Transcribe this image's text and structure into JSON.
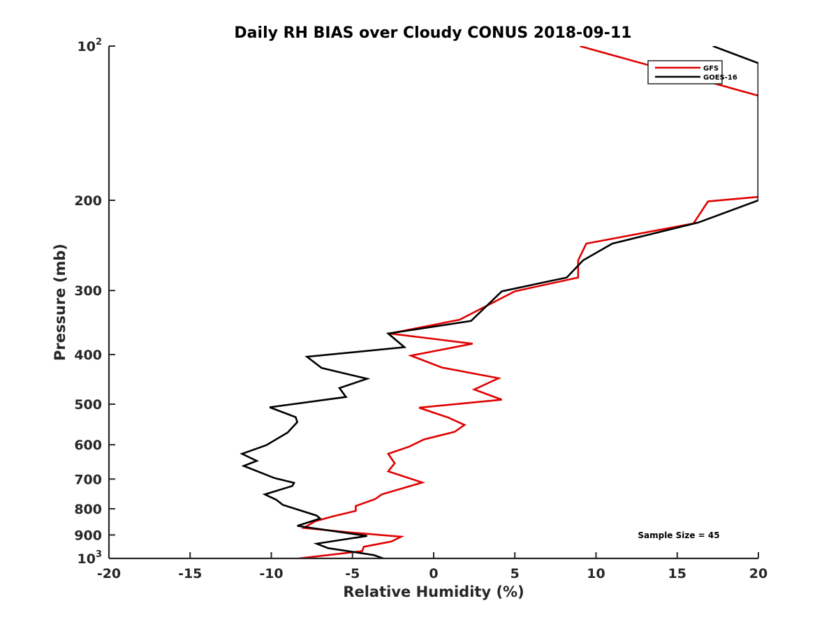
{
  "chart_data": {
    "type": "line",
    "title": "Daily RH BIAS over Cloudy CONUS 2018-09-11",
    "xlabel": "Relative Humidity (%)",
    "ylabel": "Pressure (mb)",
    "xlim": [
      -20,
      20
    ],
    "ylim": [
      100,
      1000
    ],
    "yscale": "log",
    "y_reversed": true,
    "grid": false,
    "legend_position": "top-right",
    "xticks": [
      -20,
      -15,
      -10,
      -5,
      0,
      5,
      10,
      15,
      20
    ],
    "xtick_labels": [
      "-20",
      "-15",
      "-10",
      "-5",
      "0",
      "5",
      "10",
      "15",
      "20"
    ],
    "yticks": [
      100,
      200,
      300,
      400,
      500,
      600,
      700,
      800,
      900,
      1000
    ],
    "ytick_labels": [
      {
        "base": "10",
        "exp": "2"
      },
      {
        "base": "200",
        "exp": ""
      },
      {
        "base": "300",
        "exp": ""
      },
      {
        "base": "400",
        "exp": ""
      },
      {
        "base": "500",
        "exp": ""
      },
      {
        "base": "600",
        "exp": ""
      },
      {
        "base": "700",
        "exp": ""
      },
      {
        "base": "800",
        "exp": ""
      },
      {
        "base": "900",
        "exp": ""
      },
      {
        "base": "10",
        "exp": "3"
      }
    ],
    "annotation": "Sample Size = 45",
    "series": [
      {
        "name": "GFS",
        "color": "#e00000",
        "points": [
          [
            9.0,
            100
          ],
          [
            20.0,
            125
          ],
          [
            20.0,
            197
          ],
          [
            16.9,
            201
          ],
          [
            16.0,
            222
          ],
          [
            9.4,
            243
          ],
          [
            8.9,
            262
          ],
          [
            8.9,
            283
          ],
          [
            5.0,
            301
          ],
          [
            1.6,
            342
          ],
          [
            -2.7,
            364
          ],
          [
            2.4,
            381
          ],
          [
            -1.4,
            402
          ],
          [
            0.5,
            424
          ],
          [
            4.0,
            445
          ],
          [
            2.5,
            468
          ],
          [
            4.2,
            490
          ],
          [
            -0.9,
            508
          ],
          [
            0.9,
            531
          ],
          [
            1.9,
            549
          ],
          [
            1.3,
            566
          ],
          [
            -0.6,
            586
          ],
          [
            -1.5,
            605
          ],
          [
            -2.8,
            625
          ],
          [
            -2.4,
            652
          ],
          [
            -2.8,
            676
          ],
          [
            -0.7,
            711
          ],
          [
            -3.2,
            750
          ],
          [
            -3.6,
            766
          ],
          [
            -4.8,
            790
          ],
          [
            -4.8,
            808
          ],
          [
            -6.1,
            826
          ],
          [
            -7.3,
            846
          ],
          [
            -8.0,
            872
          ],
          [
            -5.1,
            890
          ],
          [
            -2.0,
            907
          ],
          [
            -2.6,
            927
          ],
          [
            -4.3,
            949
          ],
          [
            -4.4,
            968
          ],
          [
            -8.3,
            1000
          ]
        ]
      },
      {
        "name": "GOES-16",
        "color": "#000000",
        "points": [
          [
            17.2,
            100
          ],
          [
            20.0,
            108
          ],
          [
            20.0,
            200
          ],
          [
            16.3,
            221
          ],
          [
            11.0,
            243
          ],
          [
            9.2,
            262
          ],
          [
            8.2,
            283
          ],
          [
            4.2,
            301
          ],
          [
            2.3,
            344
          ],
          [
            -2.8,
            364
          ],
          [
            -1.8,
            387
          ],
          [
            -7.8,
            404
          ],
          [
            -6.9,
            425
          ],
          [
            -4.1,
            446
          ],
          [
            -5.8,
            465
          ],
          [
            -5.4,
            484
          ],
          [
            -10.1,
            507
          ],
          [
            -8.5,
            530
          ],
          [
            -8.4,
            542
          ],
          [
            -9.0,
            568
          ],
          [
            -10.3,
            601
          ],
          [
            -11.8,
            625
          ],
          [
            -10.9,
            645
          ],
          [
            -11.7,
            660
          ],
          [
            -9.8,
            697
          ],
          [
            -8.6,
            712
          ],
          [
            -8.7,
            722
          ],
          [
            -10.4,
            750
          ],
          [
            -9.7,
            768
          ],
          [
            -9.3,
            786
          ],
          [
            -7.2,
            825
          ],
          [
            -7.0,
            836
          ],
          [
            -8.4,
            864
          ],
          [
            -4.1,
            904
          ],
          [
            -7.2,
            936
          ],
          [
            -6.5,
            955
          ],
          [
            -3.7,
            985
          ],
          [
            -3.1,
            1000
          ]
        ]
      }
    ]
  }
}
